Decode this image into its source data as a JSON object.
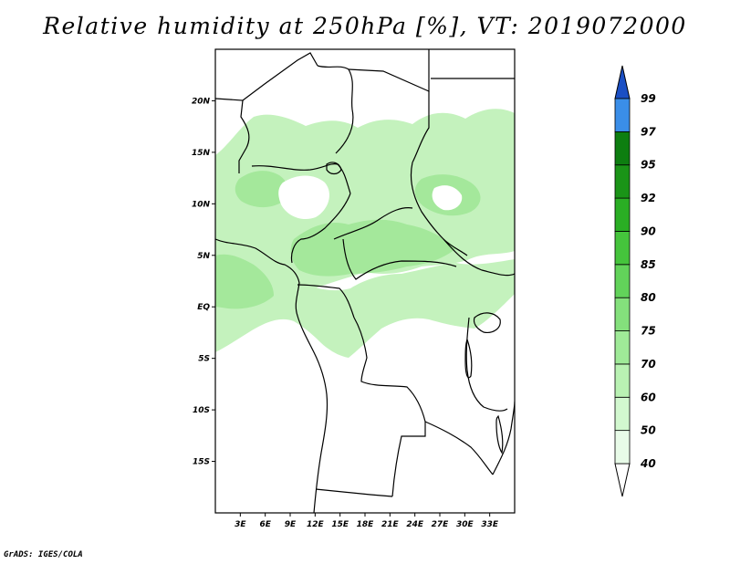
{
  "title": "Relative humidity at 250hPa [%], VT: 2019072000",
  "credit": "GrADS: IGES/COLA",
  "map": {
    "lon_range": [
      0,
      36
    ],
    "lat_range": [
      -20,
      25
    ],
    "lat_ticks": [
      {
        "label": "20N",
        "lat": 20
      },
      {
        "label": "15N",
        "lat": 15
      },
      {
        "label": "10N",
        "lat": 10
      },
      {
        "label": "5N",
        "lat": 5
      },
      {
        "label": "EQ",
        "lat": 0
      },
      {
        "label": "5S",
        "lat": -5
      },
      {
        "label": "10S",
        "lat": -10
      },
      {
        "label": "15S",
        "lat": -15
      }
    ],
    "lon_ticks": [
      {
        "label": "3E",
        "lon": 3
      },
      {
        "label": "6E",
        "lon": 6
      },
      {
        "label": "9E",
        "lon": 9
      },
      {
        "label": "12E",
        "lon": 12
      },
      {
        "label": "15E",
        "lon": 15
      },
      {
        "label": "18E",
        "lon": 18
      },
      {
        "label": "21E",
        "lon": 21
      },
      {
        "label": "24E",
        "lon": 24
      },
      {
        "label": "27E",
        "lon": 27
      },
      {
        "label": "30E",
        "lon": 30
      },
      {
        "label": "33E",
        "lon": 33
      }
    ]
  },
  "colorbar": {
    "levels": [
      "40",
      "50",
      "60",
      "70",
      "75",
      "80",
      "85",
      "90",
      "92",
      "95",
      "97",
      "99"
    ],
    "colors": [
      "#e8fbe8",
      "#d2f8cf",
      "#b9f2b3",
      "#9fea98",
      "#84e07c",
      "#62d35a",
      "#45c43c",
      "#2aae24",
      "#1a9417",
      "#0d7e10",
      "#3a8ee8",
      "#2266d8",
      "#1a4fc4"
    ]
  },
  "chart_data": {
    "type": "heatmap",
    "title": "Relative humidity at 250hPa [%], VT: 2019072000",
    "variable": "Relative humidity at 250hPa",
    "units": "%",
    "valid_time": "2019072000",
    "contour_levels": [
      40,
      50,
      60,
      70,
      75,
      80,
      85,
      90,
      92,
      95,
      97,
      99
    ],
    "xlim": [
      0,
      36
    ],
    "ylim": [
      -20,
      25
    ]
  }
}
